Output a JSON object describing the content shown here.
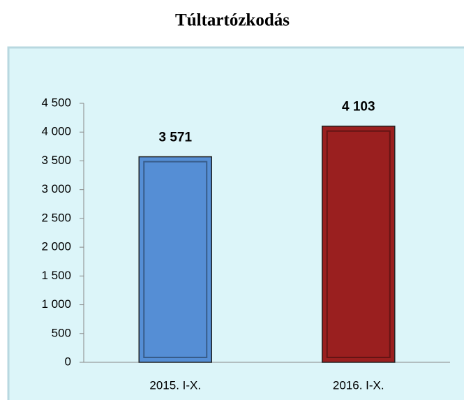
{
  "chart_data": {
    "type": "bar",
    "title": "Túltartózkodás",
    "categories": [
      "2015. I-X.",
      "2016. I-X."
    ],
    "values": [
      3571,
      4103
    ],
    "value_labels": [
      "3 571",
      "4 103"
    ],
    "colors": [
      "#558ed5",
      "#9a1f1f"
    ],
    "ylim": [
      0,
      4500
    ],
    "yticks": [
      0,
      500,
      {
        "value": 1000,
        "label": "1 000"
      },
      {
        "value": 1500,
        "label": "1 500"
      },
      {
        "value": 2000,
        "label": "2 000"
      },
      {
        "value": 2500,
        "label": "2 500"
      },
      {
        "value": 3000,
        "label": "3 000"
      },
      {
        "value": 3500,
        "label": "3 500"
      },
      {
        "value": 4000,
        "label": "4 000"
      },
      {
        "value": 4500,
        "label": "4 500"
      }
    ]
  }
}
